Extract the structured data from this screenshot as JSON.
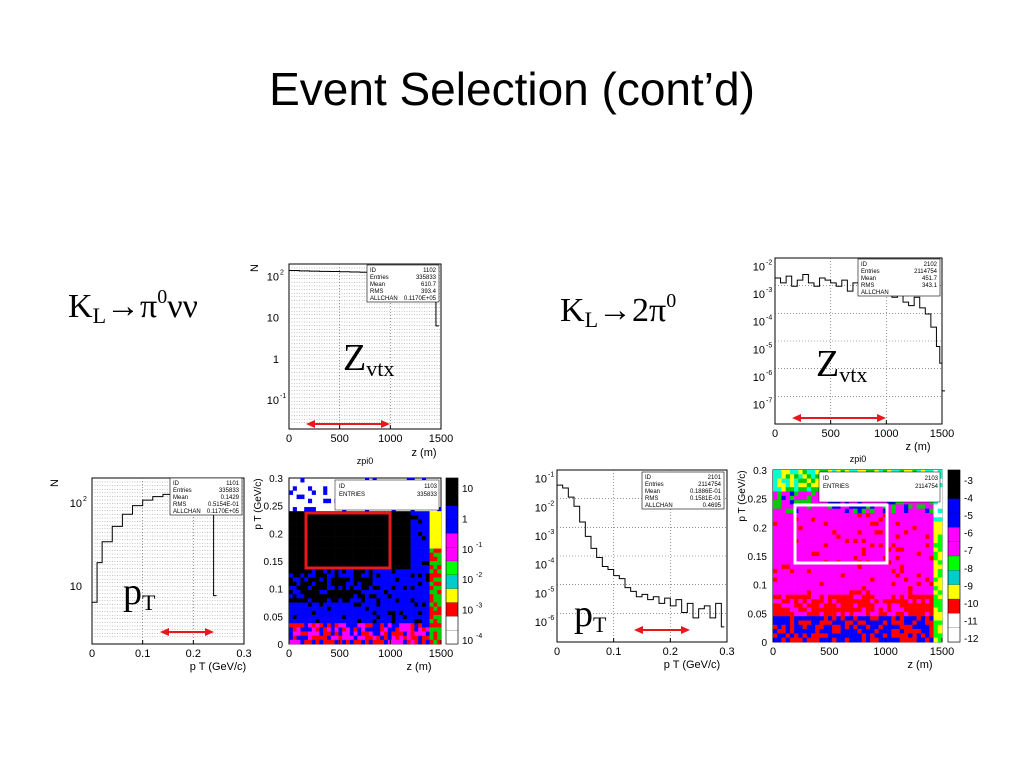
{
  "slide": {
    "title": "Event Selection (cont’d)",
    "left_label": {
      "main": "K",
      "sub": "L",
      "rest": "→π",
      "sup": "0",
      "tail": "νν"
    },
    "right_label": {
      "main": "K",
      "sub": "L",
      "rest": "→2π",
      "sup": "0"
    },
    "zvtx_left": {
      "main": "Z",
      "sub": "vtx"
    },
    "zvtx_right": {
      "main": "Z",
      "sub": "vtx"
    },
    "pt_left": {
      "main": "p",
      "sub": "T"
    },
    "pt_right": {
      "main": "p",
      "sub": "T"
    }
  },
  "colors": {
    "arrow": "#e8191c",
    "selection_box_left": "#e8191c",
    "selection_box_right": "#ffffff",
    "palette": [
      "#ffffff",
      "#cc0000",
      "#ffff00",
      "#00cc00",
      "#00ffcc",
      "#ff00ff",
      "#0000ff",
      "#000000"
    ]
  },
  "chart_data": [
    {
      "id": "kl-pi0nunu-zvtx",
      "type": "line",
      "xlabel": "z (m)",
      "ylabel": "N",
      "caption": "zpi0",
      "x_ticks": [
        "0",
        "500",
        "1000",
        "1500"
      ],
      "y_ticks": [
        "10 2",
        "10",
        "1",
        "10 -1"
      ],
      "y_log": true,
      "xlim": [
        0,
        1500
      ],
      "stats": [
        [
          "ID",
          "1102"
        ],
        [
          "Entries",
          "335833"
        ],
        [
          "Mean",
          "610.7"
        ],
        [
          "RMS",
          "393.4"
        ],
        [
          "ALLCHAN",
          "0.1170E+05"
        ]
      ],
      "x": [
        0,
        100,
        200,
        300,
        400,
        500,
        600,
        700,
        800,
        900,
        1000,
        1100,
        1200,
        1300,
        1350,
        1400,
        1430,
        1450
      ],
      "values": [
        220,
        215,
        212,
        210,
        208,
        205,
        202,
        200,
        198,
        195,
        190,
        185,
        175,
        150,
        120,
        80,
        40,
        10
      ]
    },
    {
      "id": "kl-2pi0-zvtx",
      "type": "line",
      "xlabel": "z (m)",
      "caption": "zpi0",
      "x_ticks": [
        "0",
        "500",
        "1000",
        "1500"
      ],
      "y_ticks": [
        "10 -2",
        "10 -3",
        "10 -4",
        "10 -5",
        "10 -6",
        "10 -7"
      ],
      "y_log": true,
      "xlim": [
        0,
        1500
      ],
      "stats": [
        [
          "ID",
          "2102"
        ],
        [
          "Entries",
          "2114754"
        ],
        [
          "Mean",
          "451.7"
        ],
        [
          "RMS",
          "343.1"
        ],
        [
          "ALLCHAN",
          ""
        ]
      ],
      "x": [
        0,
        50,
        100,
        150,
        200,
        250,
        300,
        350,
        400,
        450,
        500,
        550,
        600,
        650,
        700,
        750,
        800,
        850,
        900,
        950,
        1000,
        1050,
        1100,
        1150,
        1200,
        1250,
        1300,
        1350,
        1400,
        1450,
        1480,
        1500
      ],
      "values": [
        0.006,
        0.004,
        0.007,
        0.003,
        0.005,
        0.008,
        0.004,
        0.003,
        0.006,
        0.005,
        0.004,
        0.003,
        0.005,
        0.002,
        0.004,
        0.003,
        0.002,
        0.003,
        0.0015,
        0.002,
        0.0025,
        0.0012,
        0.0015,
        0.0008,
        0.0006,
        0.0012,
        0.0005,
        0.0003,
        0.0001,
        2e-05,
        5e-06,
        5e-07
      ]
    },
    {
      "id": "kl-pi0nunu-pt",
      "type": "line",
      "xlabel": "p T (GeV/c)",
      "ylabel": "N",
      "x_ticks": [
        "0",
        "0.1",
        "0.2",
        "0.3"
      ],
      "y_ticks": [
        "10 2",
        "10"
      ],
      "y_log": true,
      "xlim": [
        0,
        0.3
      ],
      "stats": [
        [
          "ID",
          "1101"
        ],
        [
          "Entries",
          "335833"
        ],
        [
          "Mean",
          "0.1429"
        ],
        [
          "RMS",
          "0.5154E-01"
        ],
        [
          "ALLCHAN",
          "0.1170E+05"
        ]
      ],
      "x": [
        0,
        0.01,
        0.02,
        0.04,
        0.06,
        0.08,
        0.1,
        0.12,
        0.14,
        0.16,
        0.18,
        0.2,
        0.22,
        0.23,
        0.24
      ],
      "values": [
        8,
        30,
        60,
        100,
        150,
        200,
        240,
        270,
        290,
        300,
        290,
        270,
        220,
        150,
        10
      ]
    },
    {
      "id": "kl-pi0nunu-pt-vs-z",
      "type": "heatmap",
      "xlabel": "z (m)",
      "ylabel": "p T (GeV/c)",
      "x_ticks": [
        "0",
        "500",
        "1000",
        "1500"
      ],
      "y_ticks": [
        "0",
        "0.05",
        "0.1",
        "0.15",
        "0.2",
        "0.25",
        "0.3"
      ],
      "stats": [
        [
          "ID",
          "1103"
        ],
        [
          "ENTRIES",
          "335833"
        ]
      ],
      "legend_ticks": [
        "10",
        "1",
        "10 -1",
        "10 -2",
        "10 -3",
        "10 -4"
      ]
    },
    {
      "id": "kl-2pi0-pt",
      "type": "line",
      "xlabel": "p T (GeV/c)",
      "x_ticks": [
        "0",
        "0.1",
        "0.2",
        "0.3"
      ],
      "y_ticks": [
        "10 -1",
        "10 -2",
        "10 -3",
        "10 -4",
        "10 -5",
        "10 -6"
      ],
      "y_log": true,
      "xlim": [
        0,
        0.3
      ],
      "stats": [
        [
          "ID",
          "2101"
        ],
        [
          "Entries",
          "2114754"
        ],
        [
          "Mean",
          "0.1886E-01"
        ],
        [
          "RMS",
          "0.1581E-01"
        ],
        [
          "ALLCHAN",
          "0.4695"
        ]
      ],
      "x": [
        0,
        0.01,
        0.02,
        0.03,
        0.04,
        0.05,
        0.06,
        0.07,
        0.08,
        0.09,
        0.1,
        0.11,
        0.12,
        0.13,
        0.14,
        0.15,
        0.16,
        0.17,
        0.18,
        0.19,
        0.2,
        0.21,
        0.22,
        0.23,
        0.24,
        0.25,
        0.26,
        0.27,
        0.28,
        0.29
      ],
      "values": [
        0.05,
        0.04,
        0.02,
        0.01,
        0.003,
        0.001,
        0.0004,
        0.0002,
        0.0001,
        8e-05,
        5e-05,
        4e-05,
        2e-05,
        1.5e-05,
        1e-05,
        1.2e-05,
        8e-06,
        1e-05,
        6e-06,
        9e-06,
        5e-06,
        8e-06,
        3e-06,
        6e-06,
        2e-06,
        4e-06,
        5e-06,
        2e-06,
        6e-06,
        1e-06
      ]
    },
    {
      "id": "kl-2pi0-pt-vs-z",
      "type": "heatmap",
      "xlabel": "z (m)",
      "ylabel": "p T (GeV/c)",
      "x_ticks": [
        "0",
        "500",
        "1000",
        "1500"
      ],
      "y_ticks": [
        "0",
        "0.05",
        "0.1",
        "0.15",
        "0.2",
        "0.25",
        "0.3"
      ],
      "stats": [
        [
          "ID",
          "2103"
        ],
        [
          "ENTRIES",
          "2114754"
        ]
      ],
      "legend_ticks": [
        "-3",
        "-4",
        "-5",
        "-6",
        "-7",
        "-8",
        "-9",
        "-10",
        "-11",
        "-12"
      ]
    }
  ]
}
